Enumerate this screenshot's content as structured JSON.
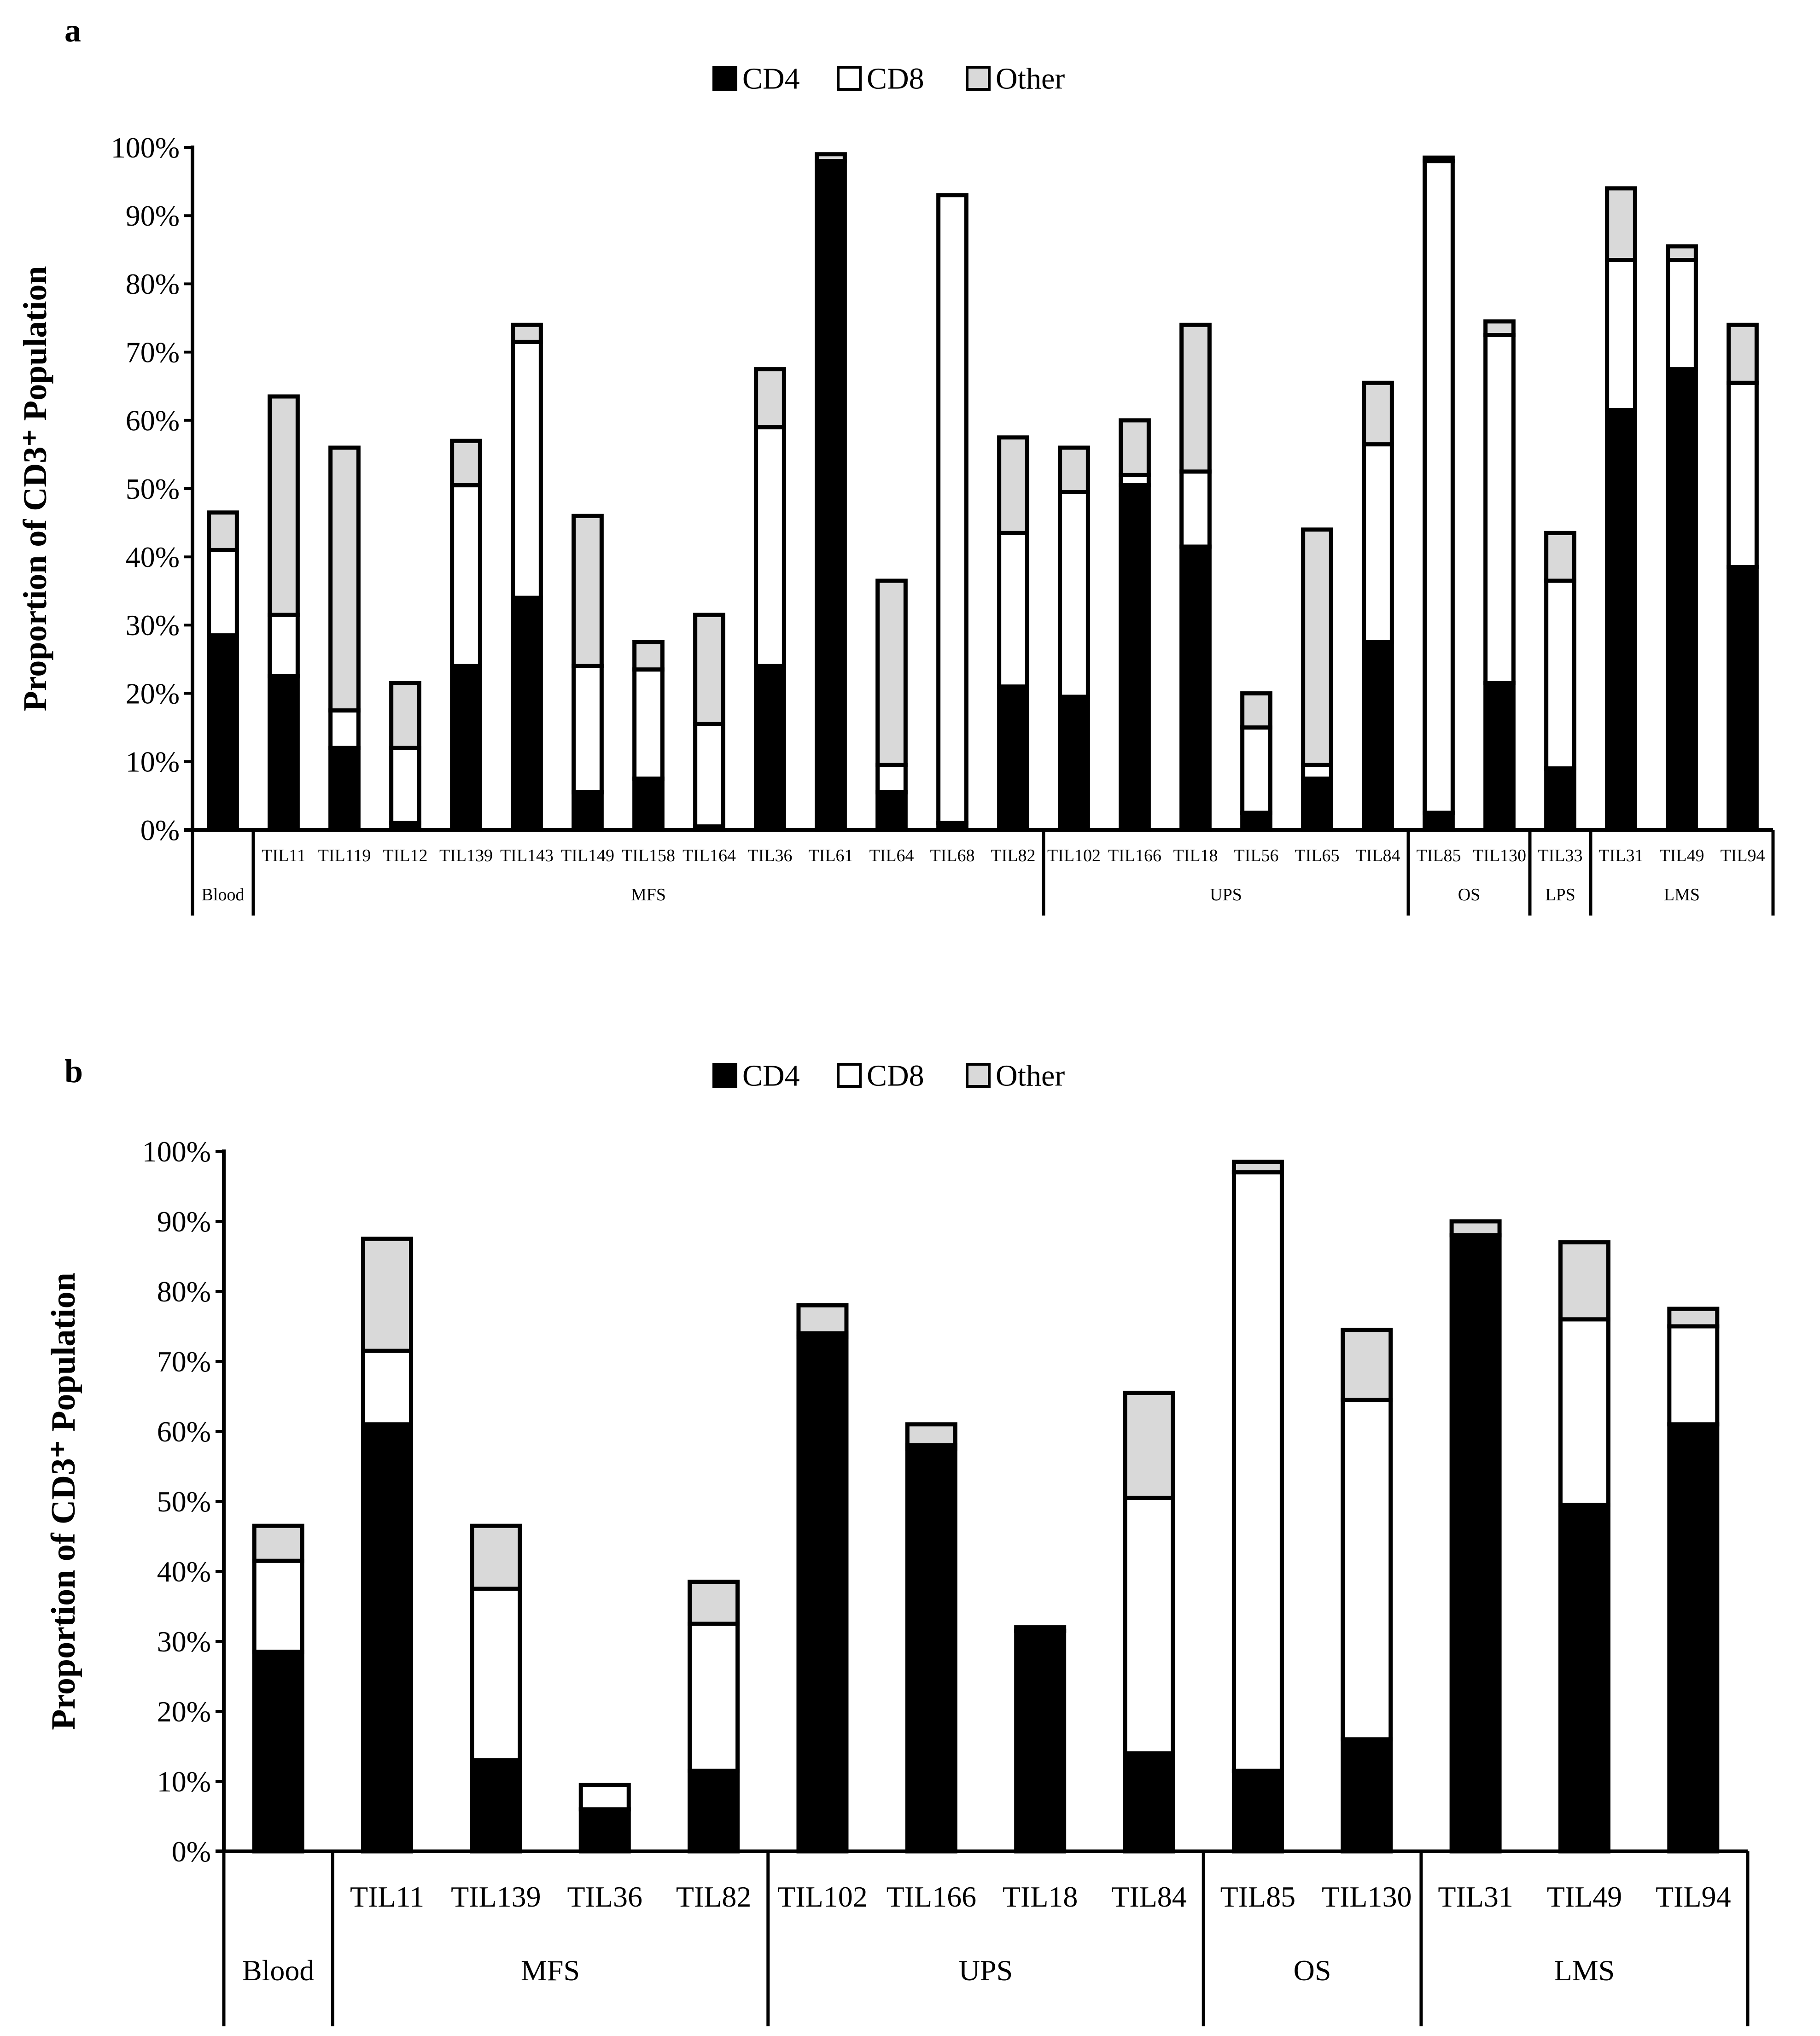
{
  "chart_data": [
    {
      "panel": "a",
      "type": "bar",
      "stacked": true,
      "legend": [
        "CD4",
        "CD8",
        "Other"
      ],
      "legend_position": "top-center",
      "ylabel": "Proportion of CD3⁺ Population",
      "ylim": [
        0,
        100
      ],
      "yticks": [
        "0%",
        "10%",
        "20%",
        "30%",
        "40%",
        "50%",
        "60%",
        "70%",
        "80%",
        "90%",
        "100%"
      ],
      "categories": [
        "",
        "TIL11",
        "TIL119",
        "TIL12",
        "TIL139",
        "TIL143",
        "TIL149",
        "TIL158",
        "TIL164",
        "TIL36",
        "TIL61",
        "TIL64",
        "TIL68",
        "TIL82",
        "TIL102",
        "TIL166",
        "TIL18",
        "TIL56",
        "TIL65",
        "TIL84",
        "TIL85",
        "TIL130",
        "TIL33",
        "TIL31",
        "TIL49",
        "TIL94"
      ],
      "groups": [
        {
          "label": "Blood",
          "count": 1
        },
        {
          "label": "MFS",
          "count": 13
        },
        {
          "label": "UPS",
          "count": 6
        },
        {
          "label": "OS",
          "count": 2
        },
        {
          "label": "LPS",
          "count": 1
        },
        {
          "label": "LMS",
          "count": 3
        }
      ],
      "series": [
        {
          "name": "CD4",
          "values": [
            28.5,
            22.5,
            12,
            1,
            24,
            34,
            5.5,
            7.5,
            0.5,
            24,
            98,
            5.5,
            1,
            21,
            19.5,
            50.5,
            41.5,
            2.5,
            7.5,
            27.5,
            2.5,
            21.5,
            9,
            61.5,
            67.5,
            38.5
          ]
        },
        {
          "name": "CD8",
          "values": [
            12.5,
            9,
            5.5,
            11,
            26.5,
            37.5,
            18.5,
            16,
            15,
            35,
            0,
            4,
            92,
            22.5,
            30,
            1.5,
            11,
            12.5,
            2,
            29,
            95.5,
            51,
            27.5,
            22,
            16,
            27
          ]
        },
        {
          "name": "Other",
          "values": [
            5.5,
            32,
            38.5,
            9.5,
            6.5,
            2.5,
            22,
            4,
            16,
            8.5,
            1,
            27,
            0,
            14,
            6.5,
            8,
            21.5,
            5,
            34.5,
            9,
            0.5,
            2,
            7,
            10.5,
            2,
            8.5
          ]
        }
      ]
    },
    {
      "panel": "b",
      "type": "bar",
      "stacked": true,
      "legend": [
        "CD4",
        "CD8",
        "Other"
      ],
      "legend_position": "top-center",
      "ylabel": "Proportion of CD3⁺ Population",
      "ylim": [
        0,
        100
      ],
      "yticks": [
        "0%",
        "10%",
        "20%",
        "30%",
        "40%",
        "50%",
        "60%",
        "70%",
        "80%",
        "90%",
        "100%"
      ],
      "categories": [
        "",
        "TIL11",
        "TIL139",
        "TIL36",
        "TIL82",
        "TIL102",
        "TIL166",
        "TIL18",
        "TIL84",
        "TIL85",
        "TIL130",
        "TIL31",
        "TIL49",
        "TIL94"
      ],
      "groups": [
        {
          "label": "Blood",
          "count": 1
        },
        {
          "label": "MFS",
          "count": 4
        },
        {
          "label": "UPS",
          "count": 4
        },
        {
          "label": "OS",
          "count": 2
        },
        {
          "label": "LMS",
          "count": 3
        }
      ],
      "series": [
        {
          "name": "CD4",
          "values": [
            28.5,
            61,
            13,
            6,
            11.5,
            73.5,
            57.5,
            31.5,
            14,
            11.5,
            16,
            88,
            49.5,
            61
          ]
        },
        {
          "name": "CD8",
          "values": [
            13,
            10.5,
            24.5,
            3.5,
            21,
            0.5,
            0.5,
            0,
            36.5,
            85.5,
            48.5,
            0,
            26.5,
            14
          ]
        },
        {
          "name": "Other",
          "values": [
            5,
            16,
            9,
            0,
            6,
            4,
            3,
            0.5,
            15,
            1.5,
            10,
            2,
            11,
            2.5
          ]
        }
      ]
    }
  ]
}
